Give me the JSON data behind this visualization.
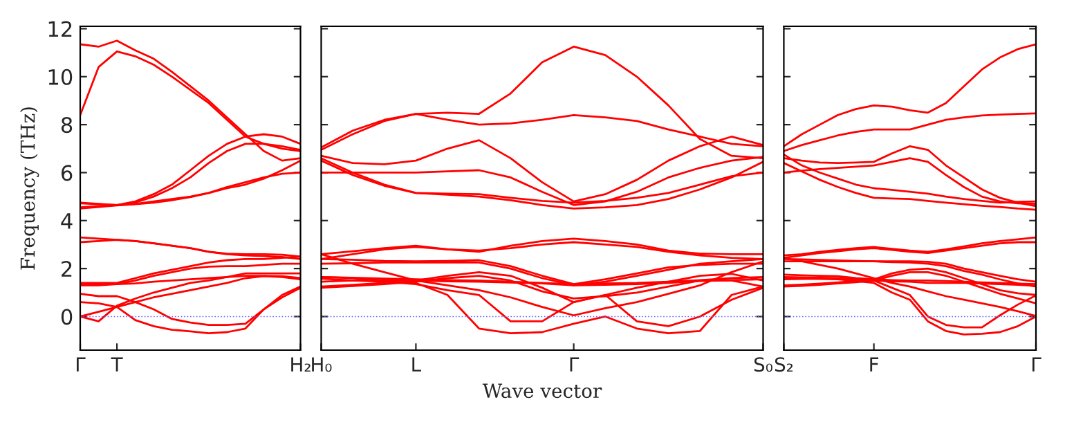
{
  "chart_data": [
    {
      "type": "line",
      "ylabel": "Frequency (THz)",
      "categories": [
        "Γ",
        null,
        "T",
        null,
        null,
        null,
        null,
        null,
        null,
        null,
        null,
        null,
        "H₂"
      ],
      "ylim": [
        -1.4,
        12.1
      ],
      "yticks": [
        0,
        2,
        4,
        6,
        8,
        10,
        12
      ],
      "grid": false,
      "line_style": "solid",
      "ref_lines": [
        {
          "axis": "y",
          "value": 0,
          "color": "#6666ff",
          "line_style": "dotted"
        }
      ],
      "series": [
        {
          "color": "#ff0000",
          "values": [
            11.35,
            11.25,
            11.5,
            11.1,
            10.75,
            10.2,
            9.6,
            9.0,
            8.3,
            7.6,
            6.9,
            6.5,
            6.6
          ]
        },
        {
          "color": "#ff0000",
          "values": [
            8.4,
            10.4,
            11.05,
            10.85,
            10.5,
            10.0,
            9.45,
            8.9,
            8.2,
            7.5,
            7.2,
            7.0,
            6.9
          ]
        },
        {
          "color": "#ff0000",
          "values": [
            4.75,
            4.7,
            4.65,
            4.8,
            5.1,
            5.5,
            6.1,
            6.7,
            7.2,
            7.5,
            7.6,
            7.5,
            7.2
          ]
        },
        {
          "color": "#ff0000",
          "values": [
            4.72,
            4.68,
            4.65,
            4.75,
            5.0,
            5.35,
            5.8,
            6.4,
            6.9,
            7.2,
            7.2,
            7.1,
            6.95
          ]
        },
        {
          "color": "#ff0000",
          "values": [
            4.55,
            4.6,
            4.65,
            4.7,
            4.8,
            4.9,
            5.0,
            5.15,
            5.35,
            5.5,
            5.75,
            6.1,
            6.5
          ]
        },
        {
          "color": "#ff0000",
          "values": [
            4.5,
            4.57,
            4.63,
            4.68,
            4.75,
            4.85,
            4.98,
            5.15,
            5.4,
            5.6,
            5.8,
            5.95,
            6.0
          ]
        },
        {
          "color": "#ff0000",
          "values": [
            3.3,
            3.25,
            3.2,
            3.15,
            3.05,
            2.95,
            2.85,
            2.7,
            2.62,
            2.6,
            2.6,
            2.58,
            2.5
          ]
        },
        {
          "color": "#ff0000",
          "values": [
            3.1,
            3.15,
            3.2,
            3.15,
            3.05,
            2.95,
            2.85,
            2.7,
            2.6,
            2.55,
            2.52,
            2.48,
            2.4
          ]
        },
        {
          "color": "#ff0000",
          "values": [
            1.4,
            1.4,
            1.4,
            1.6,
            1.8,
            1.95,
            2.1,
            2.25,
            2.35,
            2.4,
            2.4,
            2.45,
            2.5
          ]
        },
        {
          "color": "#ff0000",
          "values": [
            1.35,
            1.35,
            1.35,
            1.38,
            1.45,
            1.5,
            1.55,
            1.6,
            1.65,
            1.7,
            1.7,
            1.68,
            1.6
          ]
        },
        {
          "color": "#ff0000",
          "values": [
            1.3,
            1.3,
            1.35,
            1.5,
            1.7,
            1.85,
            2.0,
            2.08,
            2.1,
            2.1,
            2.15,
            2.2,
            2.2
          ]
        },
        {
          "color": "#ff0000",
          "values": [
            0,
            0.2,
            0.4,
            0.6,
            0.8,
            0.95,
            1.1,
            1.25,
            1.4,
            1.6,
            1.68,
            1.65,
            1.55
          ]
        },
        {
          "color": "#ff0000",
          "values": [
            0,
            -0.2,
            0.45,
            0.75,
            1.0,
            1.2,
            1.4,
            1.5,
            1.65,
            1.8,
            1.8,
            1.8,
            1.8
          ]
        },
        {
          "color": "#ff0000",
          "values": [
            0.95,
            0.85,
            0.85,
            0.6,
            0.3,
            -0.1,
            -0.25,
            -0.35,
            -0.35,
            -0.3,
            0.3,
            0.9,
            1.25
          ]
        },
        {
          "color": "#ff0000",
          "values": [
            0.6,
            0.55,
            0.4,
            -0.15,
            -0.4,
            -0.55,
            -0.62,
            -0.7,
            -0.65,
            -0.5,
            0.3,
            0.8,
            1.2
          ]
        }
      ]
    },
    {
      "type": "line",
      "xlabel": "Wave vector",
      "categories": [
        "H₀",
        null,
        null,
        "L",
        null,
        null,
        null,
        null,
        "Γ",
        null,
        null,
        null,
        null,
        null,
        "S₀"
      ],
      "ylim": [
        -1.4,
        12.1
      ],
      "yticks": [
        0,
        2,
        4,
        6,
        8,
        10,
        12
      ],
      "tick_labels": "x",
      "grid": false,
      "line_style": "solid",
      "ref_lines": [
        {
          "axis": "y",
          "value": 0,
          "color": "#6666ff",
          "line_style": "dotted"
        }
      ],
      "series": [
        {
          "color": "#ff0000",
          "values": [
            7.05,
            7.75,
            8.2,
            8.45,
            8.5,
            8.45,
            9.3,
            10.6,
            11.25,
            10.9,
            10.0,
            8.8,
            7.4,
            6.7,
            6.6
          ]
        },
        {
          "color": "#ff0000",
          "values": [
            6.95,
            7.6,
            8.15,
            8.45,
            8.2,
            8.0,
            8.05,
            8.2,
            8.4,
            8.3,
            8.15,
            7.8,
            7.5,
            7.2,
            7.1
          ]
        },
        {
          "color": "#ff0000",
          "values": [
            6.7,
            6.4,
            6.35,
            6.5,
            7.0,
            7.35,
            6.6,
            5.6,
            4.8,
            5.1,
            5.7,
            6.5,
            7.1,
            7.5,
            7.15
          ]
        },
        {
          "color": "#ff0000",
          "values": [
            6.6,
            6.0,
            5.5,
            5.15,
            5.12,
            5.1,
            4.95,
            4.82,
            4.75,
            4.82,
            4.95,
            5.15,
            5.5,
            5.85,
            6.0
          ]
        },
        {
          "color": "#ff0000",
          "values": [
            6.0,
            6.0,
            6.0,
            6.0,
            6.05,
            6.1,
            5.8,
            5.2,
            4.65,
            4.8,
            5.2,
            5.8,
            6.2,
            6.5,
            6.65
          ]
        },
        {
          "color": "#ff0000",
          "values": [
            6.5,
            5.9,
            5.45,
            5.15,
            5.08,
            5.0,
            4.85,
            4.65,
            4.5,
            4.55,
            4.65,
            4.9,
            5.3,
            5.8,
            6.45
          ]
        },
        {
          "color": "#ff0000",
          "values": [
            2.6,
            2.72,
            2.85,
            2.95,
            2.8,
            2.7,
            2.95,
            3.15,
            3.25,
            3.15,
            3.0,
            2.75,
            2.62,
            2.6,
            2.6
          ]
        },
        {
          "color": "#ff0000",
          "values": [
            2.4,
            2.6,
            2.8,
            2.9,
            2.8,
            2.75,
            2.85,
            3.0,
            3.1,
            3.0,
            2.9,
            2.7,
            2.55,
            2.45,
            2.4
          ]
        },
        {
          "color": "#ff0000",
          "values": [
            2.4,
            2.37,
            2.32,
            2.3,
            2.32,
            2.35,
            2.1,
            1.7,
            1.35,
            1.55,
            1.8,
            2.05,
            2.15,
            2.2,
            2.2
          ]
        },
        {
          "color": "#ff0000",
          "values": [
            2.2,
            2.22,
            2.25,
            2.25,
            2.25,
            2.25,
            2.0,
            1.6,
            1.3,
            1.45,
            1.7,
            1.95,
            2.2,
            2.3,
            2.4
          ]
        },
        {
          "color": "#ff0000",
          "values": [
            1.65,
            1.62,
            1.58,
            1.55,
            1.52,
            1.5,
            1.45,
            1.4,
            1.35,
            1.38,
            1.4,
            1.45,
            1.52,
            1.6,
            1.65
          ]
        },
        {
          "color": "#ff0000",
          "values": [
            1.45,
            1.5,
            1.52,
            1.5,
            1.47,
            1.45,
            1.42,
            1.38,
            1.3,
            1.32,
            1.35,
            1.4,
            1.48,
            1.52,
            1.55
          ]
        },
        {
          "color": "#ff0000",
          "values": [
            1.25,
            1.32,
            1.4,
            1.5,
            1.7,
            1.85,
            1.7,
            1.2,
            0.6,
            0.9,
            1.2,
            1.45,
            1.7,
            1.78,
            1.5
          ]
        },
        {
          "color": "#ff0000",
          "values": [
            1.2,
            1.27,
            1.35,
            1.45,
            1.6,
            1.7,
            1.5,
            1.05,
            0.75,
            0.85,
            1.0,
            1.25,
            1.5,
            1.5,
            1.25
          ]
        },
        {
          "color": "#ff0000",
          "values": [
            2.6,
            2.2,
            1.85,
            1.5,
            1.3,
            1.1,
            0.8,
            0.4,
            0.05,
            0.35,
            0.6,
            0.95,
            1.3,
            1.85,
            2.3
          ]
        },
        {
          "color": "#ff0000",
          "values": [
            1.65,
            1.6,
            1.5,
            1.4,
            0.9,
            -0.5,
            -0.7,
            -0.65,
            -0.3,
            0.0,
            -0.5,
            -0.7,
            -0.6,
            0.9,
            1.25
          ]
        },
        {
          "color": "#ff0000",
          "values": [
            1.58,
            1.5,
            1.45,
            1.35,
            1.1,
            0.9,
            -0.2,
            -0.2,
            0.6,
            0.9,
            -0.2,
            -0.4,
            0.0,
            0.7,
            1.2
          ]
        }
      ]
    },
    {
      "type": "line",
      "categories": [
        "S₂",
        null,
        null,
        null,
        null,
        "F",
        null,
        null,
        null,
        null,
        null,
        null,
        null,
        null,
        "Γ"
      ],
      "ylim": [
        -1.4,
        12.1
      ],
      "yticks": [
        0,
        2,
        4,
        6,
        8,
        10,
        12
      ],
      "tick_labels": "x",
      "grid": false,
      "line_style": "solid",
      "ref_lines": [
        {
          "axis": "y",
          "value": 0,
          "color": "#6666ff",
          "line_style": "dotted"
        }
      ],
      "series": [
        {
          "color": "#ff0000",
          "values": [
            7.1,
            7.6,
            8.0,
            8.4,
            8.65,
            8.8,
            8.75,
            8.6,
            8.5,
            8.9,
            9.6,
            10.3,
            10.8,
            11.15,
            11.35
          ]
        },
        {
          "color": "#ff0000",
          "values": [
            6.9,
            7.15,
            7.35,
            7.55,
            7.7,
            7.8,
            7.8,
            7.8,
            8.0,
            8.2,
            8.3,
            8.38,
            8.42,
            8.45,
            8.47
          ]
        },
        {
          "color": "#ff0000",
          "values": [
            6.6,
            6.5,
            6.42,
            6.4,
            6.42,
            6.45,
            6.8,
            7.1,
            6.95,
            6.3,
            5.8,
            5.3,
            4.95,
            4.75,
            4.6
          ]
        },
        {
          "color": "#ff0000",
          "values": [
            6.0,
            6.08,
            6.15,
            6.2,
            6.25,
            6.3,
            6.45,
            6.6,
            6.45,
            5.9,
            5.4,
            5.0,
            4.8,
            4.72,
            4.7
          ]
        },
        {
          "color": "#ff0000",
          "values": [
            6.75,
            6.3,
            6.0,
            5.75,
            5.5,
            5.35,
            5.28,
            5.2,
            5.12,
            5.0,
            4.9,
            4.82,
            4.75,
            4.78,
            4.8
          ]
        },
        {
          "color": "#ff0000",
          "values": [
            6.4,
            6.05,
            5.7,
            5.4,
            5.15,
            4.95,
            4.92,
            4.9,
            4.82,
            4.75,
            4.68,
            4.62,
            4.57,
            4.5,
            4.45
          ]
        },
        {
          "color": "#ff0000",
          "values": [
            2.55,
            2.6,
            2.7,
            2.78,
            2.85,
            2.9,
            2.82,
            2.75,
            2.7,
            2.8,
            2.92,
            3.05,
            3.15,
            3.22,
            3.3
          ]
        },
        {
          "color": "#ff0000",
          "values": [
            2.45,
            2.55,
            2.65,
            2.72,
            2.8,
            2.85,
            2.78,
            2.7,
            2.65,
            2.75,
            2.85,
            2.95,
            3.05,
            3.1,
            3.1
          ]
        },
        {
          "color": "#ff0000",
          "values": [
            2.4,
            2.38,
            2.36,
            2.34,
            2.32,
            2.3,
            2.3,
            2.3,
            2.28,
            2.2,
            2.0,
            1.85,
            1.7,
            1.55,
            1.45
          ]
        },
        {
          "color": "#ff0000",
          "values": [
            2.3,
            2.3,
            2.3,
            2.3,
            2.3,
            2.3,
            2.27,
            2.25,
            2.2,
            2.1,
            1.9,
            1.75,
            1.55,
            1.38,
            1.25
          ]
        },
        {
          "color": "#ff0000",
          "values": [
            1.75,
            1.72,
            1.7,
            1.68,
            1.6,
            1.55,
            1.52,
            1.5,
            1.5,
            1.48,
            1.45,
            1.42,
            1.4,
            1.37,
            1.35
          ]
        },
        {
          "color": "#ff0000",
          "values": [
            1.55,
            1.57,
            1.58,
            1.58,
            1.52,
            1.5,
            1.47,
            1.45,
            1.4,
            1.4,
            1.4,
            1.37,
            1.35,
            1.32,
            1.28
          ]
        },
        {
          "color": "#ff0000",
          "values": [
            1.3,
            1.33,
            1.37,
            1.42,
            1.48,
            1.55,
            1.8,
            1.95,
            2.0,
            1.85,
            1.6,
            1.35,
            1.1,
            0.97,
            0.9
          ]
        },
        {
          "color": "#ff0000",
          "values": [
            1.25,
            1.28,
            1.32,
            1.38,
            1.43,
            1.5,
            1.7,
            1.85,
            1.85,
            1.7,
            1.45,
            1.2,
            0.95,
            0.75,
            0.55
          ]
        },
        {
          "color": "#ff0000",
          "values": [
            1.65,
            1.63,
            1.62,
            1.6,
            1.55,
            1.5,
            1.2,
            0.9,
            0.0,
            -0.35,
            -0.45,
            -0.45,
            0.05,
            0.5,
            0.88
          ]
        },
        {
          "color": "#ff0000",
          "values": [
            1.6,
            1.58,
            1.57,
            1.55,
            1.48,
            1.4,
            1.0,
            0.7,
            -0.2,
            -0.6,
            -0.75,
            -0.72,
            -0.65,
            -0.4,
            0.0
          ]
        },
        {
          "color": "#ff0000",
          "values": [
            2.43,
            2.3,
            2.15,
            2.0,
            1.8,
            1.6,
            1.4,
            1.25,
            1.05,
            0.85,
            0.7,
            0.55,
            0.4,
            0.22,
            0.02
          ]
        }
      ]
    }
  ]
}
